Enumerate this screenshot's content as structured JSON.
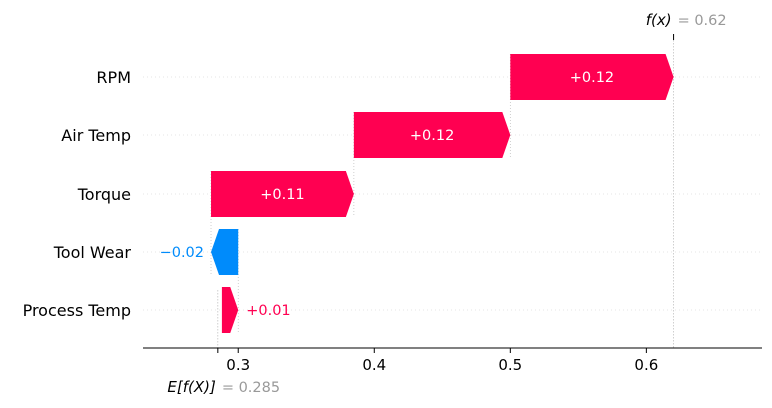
{
  "chart_data": {
    "type": "waterfall",
    "base_value": 0.285,
    "output_value": 0.62,
    "base_label": "E[f(X)]",
    "output_label": "f(x)",
    "base_value_text": "= 0.285",
    "output_value_text": "= 0.62",
    "features": [
      {
        "name": "RPM",
        "contribution": 0.12,
        "label": "+0.12"
      },
      {
        "name": "Air Temp",
        "contribution": 0.12,
        "label": "+0.12"
      },
      {
        "name": "Torque",
        "contribution": 0.11,
        "label": "+0.11"
      },
      {
        "name": "Tool Wear",
        "contribution": -0.02,
        "label": "−0.02"
      },
      {
        "name": "Process Temp",
        "contribution": 0.01,
        "label": "+0.01"
      }
    ],
    "segments": [
      {
        "start": 0.5,
        "end": 0.62
      },
      {
        "start": 0.385,
        "end": 0.5
      },
      {
        "start": 0.28,
        "end": 0.385
      },
      {
        "start": 0.3,
        "end": 0.28
      },
      {
        "start": 0.288,
        "end": 0.3
      }
    ],
    "x_ticks": [
      0.3,
      0.4,
      0.5,
      0.6
    ],
    "x_tick_labels": [
      "0.3",
      "0.4",
      "0.5",
      "0.6"
    ],
    "xlim": [
      0.23,
      0.685
    ],
    "colors": {
      "positive": "#ff0051",
      "negative": "#008bfb"
    }
  }
}
